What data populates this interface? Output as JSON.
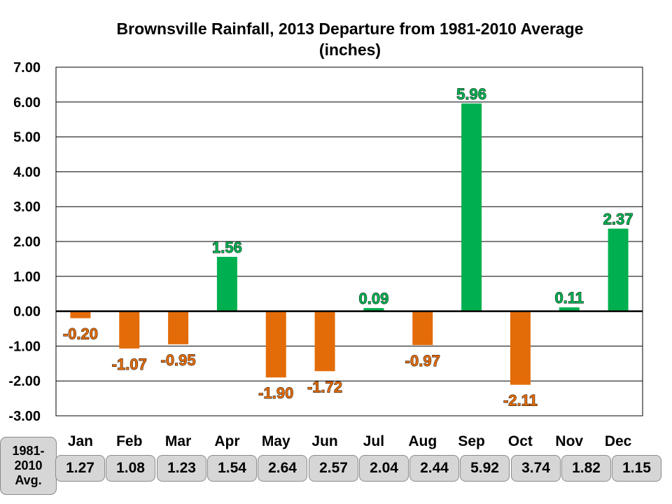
{
  "chart_data": {
    "type": "bar",
    "title": "Brownsville Rainfall, 2013 Departure from 1981-2010 Average\n(inches)",
    "categories": [
      "Jan",
      "Feb",
      "Mar",
      "Apr",
      "May",
      "Jun",
      "Jul",
      "Aug",
      "Sep",
      "Oct",
      "Nov",
      "Dec"
    ],
    "values": [
      -0.2,
      -1.07,
      -0.95,
      1.56,
      -1.9,
      -1.72,
      0.09,
      -0.97,
      5.96,
      -2.11,
      0.11,
      2.37
    ],
    "data_labels": [
      "-0.20",
      "-1.07",
      "-0.95",
      "1.56",
      "-1.90",
      "-1.72",
      "0.09",
      "-0.97",
      "5.96",
      "-2.11",
      "0.11",
      "2.37"
    ],
    "ylim": [
      -3.0,
      7.0
    ],
    "yticks": [
      "7.00",
      "6.00",
      "5.00",
      "4.00",
      "3.00",
      "2.00",
      "1.00",
      "0.00",
      "-1.00",
      "-2.00",
      "-3.00"
    ],
    "ytick_values": [
      7,
      6,
      5,
      4,
      3,
      2,
      1,
      0,
      -1,
      -2,
      -3
    ],
    "grid": true,
    "legend": "none",
    "colors": {
      "positive": "#00b050",
      "negative": "#e36c09",
      "avg_cell_bg": "#d6d6d6"
    }
  },
  "avg_table": {
    "header": "1981-\n2010\nAvg.",
    "values": [
      "1.27",
      "1.08",
      "1.23",
      "1.54",
      "2.64",
      "2.57",
      "2.04",
      "2.44",
      "5.92",
      "3.74",
      "1.82",
      "1.15"
    ]
  }
}
